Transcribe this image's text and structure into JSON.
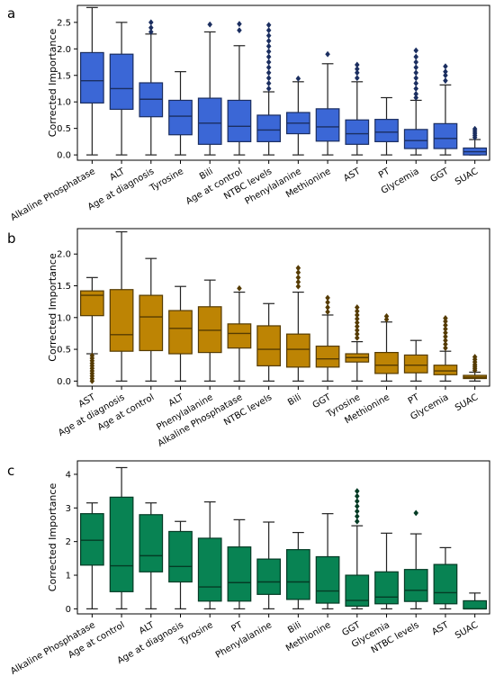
{
  "figure": {
    "background": "#ffffff",
    "whisker_color": "#222222"
  },
  "chart_data": [
    {
      "type": "box",
      "panel_label": "a",
      "title": "",
      "xlabel": "",
      "ylabel": "Corrected Importance",
      "ylim": [
        -0.1,
        2.82
      ],
      "yticks": [
        0.0,
        0.5,
        1.0,
        1.5,
        2.0,
        2.5
      ],
      "ytick_labels": [
        "0.0",
        "0.5",
        "1.0",
        "1.5",
        "2.0",
        "2.5"
      ],
      "grid": false,
      "color": "#3b67d6",
      "categories": [
        "Alkaline Phosphatase",
        "ALT",
        "Age at diagnosis",
        "Tyrosine",
        "Bili",
        "Age at control",
        "NTBC levels",
        "Phenylalanine",
        "Methionine",
        "AST",
        "PT",
        "Glycemia",
        "GGT",
        "SUAC"
      ],
      "boxes": [
        {
          "whislo": 0.0,
          "q1": 0.98,
          "med": 1.4,
          "q3": 1.93,
          "whishi": 2.78,
          "fliers": []
        },
        {
          "whislo": 0.0,
          "q1": 0.86,
          "med": 1.25,
          "q3": 1.9,
          "whishi": 2.5,
          "fliers": []
        },
        {
          "whislo": 0.0,
          "q1": 0.72,
          "med": 1.05,
          "q3": 1.36,
          "whishi": 2.28,
          "fliers": [
            2.32,
            2.4,
            2.5
          ]
        },
        {
          "whislo": 0.0,
          "q1": 0.38,
          "med": 0.73,
          "q3": 1.03,
          "whishi": 1.57,
          "fliers": []
        },
        {
          "whislo": 0.0,
          "q1": 0.2,
          "med": 0.6,
          "q3": 1.07,
          "whishi": 2.32,
          "fliers": [
            2.46
          ]
        },
        {
          "whislo": 0.0,
          "q1": 0.25,
          "med": 0.54,
          "q3": 1.03,
          "whishi": 2.06,
          "fliers": [
            2.35,
            2.47
          ]
        },
        {
          "whislo": 0.0,
          "q1": 0.25,
          "med": 0.47,
          "q3": 0.75,
          "whishi": 1.19,
          "fliers": [
            1.25,
            1.35,
            1.45,
            1.55,
            1.65,
            1.75,
            1.85,
            1.95,
            2.05,
            2.15,
            2.25,
            2.35,
            2.45
          ]
        },
        {
          "whislo": 0.0,
          "q1": 0.4,
          "med": 0.6,
          "q3": 0.8,
          "whishi": 1.38,
          "fliers": [
            1.44
          ]
        },
        {
          "whislo": 0.0,
          "q1": 0.26,
          "med": 0.53,
          "q3": 0.87,
          "whishi": 1.72,
          "fliers": [
            1.9
          ]
        },
        {
          "whislo": 0.0,
          "q1": 0.2,
          "med": 0.4,
          "q3": 0.66,
          "whishi": 1.38,
          "fliers": [
            1.45,
            1.55,
            1.62,
            1.7
          ]
        },
        {
          "whislo": 0.0,
          "q1": 0.25,
          "med": 0.43,
          "q3": 0.67,
          "whishi": 1.08,
          "fliers": []
        },
        {
          "whislo": 0.0,
          "q1": 0.12,
          "med": 0.27,
          "q3": 0.48,
          "whishi": 1.03,
          "fliers": [
            1.08,
            1.15,
            1.25,
            1.35,
            1.45,
            1.55,
            1.65,
            1.75,
            1.85,
            1.97
          ]
        },
        {
          "whislo": 0.0,
          "q1": 0.12,
          "med": 0.31,
          "q3": 0.59,
          "whishi": 1.32,
          "fliers": [
            1.4,
            1.5,
            1.57,
            1.67
          ]
        },
        {
          "whislo": 0.0,
          "q1": 0.0,
          "med": 0.06,
          "q3": 0.13,
          "whishi": 0.29,
          "fliers": [
            0.33,
            0.37,
            0.41,
            0.45,
            0.49
          ]
        }
      ]
    },
    {
      "type": "box",
      "panel_label": "b",
      "title": "",
      "xlabel": "",
      "ylabel": "Corrected Importance",
      "ylim": [
        -0.08,
        2.4
      ],
      "yticks": [
        0.0,
        0.5,
        1.0,
        1.5,
        2.0
      ],
      "ytick_labels": [
        "0.0",
        "0.5",
        "1.0",
        "1.5",
        "2.0"
      ],
      "grid": false,
      "color": "#bd8404",
      "categories": [
        "AST",
        "Age at diagnosis",
        "Age at control",
        "ALT",
        "Phenylalanine",
        "Alkaline Phosphatase",
        "NTBC levels",
        "Bili",
        "GGT",
        "Tyrosine",
        "Methionine",
        "PT",
        "Glycemia",
        "SUAC"
      ],
      "boxes": [
        {
          "whislo": 0.43,
          "q1": 1.03,
          "med": 1.35,
          "q3": 1.42,
          "whishi": 1.63,
          "fliers": [
            0.0,
            0.04,
            0.08,
            0.12,
            0.16,
            0.2,
            0.24,
            0.28,
            0.32,
            0.36,
            0.4
          ]
        },
        {
          "whislo": 0.0,
          "q1": 0.47,
          "med": 0.73,
          "q3": 1.44,
          "whishi": 2.35,
          "fliers": []
        },
        {
          "whislo": 0.0,
          "q1": 0.48,
          "med": 1.01,
          "q3": 1.35,
          "whishi": 1.93,
          "fliers": []
        },
        {
          "whislo": 0.0,
          "q1": 0.43,
          "med": 0.83,
          "q3": 1.11,
          "whishi": 1.49,
          "fliers": []
        },
        {
          "whislo": 0.0,
          "q1": 0.45,
          "med": 0.8,
          "q3": 1.17,
          "whishi": 1.59,
          "fliers": []
        },
        {
          "whislo": 0.0,
          "q1": 0.52,
          "med": 0.75,
          "q3": 0.9,
          "whishi": 1.4,
          "fliers": [
            1.46
          ]
        },
        {
          "whislo": 0.0,
          "q1": 0.24,
          "med": 0.5,
          "q3": 0.87,
          "whishi": 1.22,
          "fliers": []
        },
        {
          "whislo": 0.0,
          "q1": 0.22,
          "med": 0.5,
          "q3": 0.74,
          "whishi": 1.4,
          "fliers": [
            1.49,
            1.56,
            1.63,
            1.71,
            1.78
          ]
        },
        {
          "whislo": 0.0,
          "q1": 0.22,
          "med": 0.35,
          "q3": 0.55,
          "whishi": 1.04,
          "fliers": [
            1.09,
            1.16,
            1.24,
            1.31
          ]
        },
        {
          "whislo": 0.0,
          "q1": 0.3,
          "med": 0.37,
          "q3": 0.43,
          "whishi": 0.62,
          "fliers": [
            0.68,
            0.74,
            0.8,
            0.86,
            0.92,
            0.98,
            1.04,
            1.1,
            1.16
          ]
        },
        {
          "whislo": 0.0,
          "q1": 0.12,
          "med": 0.25,
          "q3": 0.45,
          "whishi": 0.93,
          "fliers": [
            0.97,
            1.02
          ]
        },
        {
          "whislo": 0.0,
          "q1": 0.13,
          "med": 0.25,
          "q3": 0.41,
          "whishi": 0.64,
          "fliers": []
        },
        {
          "whislo": 0.0,
          "q1": 0.1,
          "med": 0.16,
          "q3": 0.25,
          "whishi": 0.47,
          "fliers": [
            0.52,
            0.58,
            0.64,
            0.7,
            0.76,
            0.82,
            0.88,
            0.94,
            0.99
          ]
        },
        {
          "whislo": 0.0,
          "q1": 0.04,
          "med": 0.06,
          "q3": 0.09,
          "whishi": 0.14,
          "fliers": [
            0.17,
            0.2,
            0.23,
            0.26,
            0.3,
            0.34,
            0.38
          ]
        }
      ]
    },
    {
      "type": "box",
      "panel_label": "c",
      "title": "",
      "xlabel": "",
      "ylabel": "Corrected Importance",
      "ylim": [
        -0.15,
        4.4
      ],
      "yticks": [
        0,
        1,
        2,
        3,
        4
      ],
      "ytick_labels": [
        "0",
        "1",
        "2",
        "3",
        "4"
      ],
      "grid": false,
      "color": "#088353",
      "categories": [
        "Alkaline Phosphatase",
        "Age at control",
        "ALT",
        "Age at diagnosis",
        "Tyrosine",
        "PT",
        "Phenylalanine",
        "Bili",
        "Methionine",
        "GGT",
        "Glycemia",
        "NTBC levels",
        "AST",
        "SUAC"
      ],
      "boxes": [
        {
          "whislo": 0.0,
          "q1": 1.3,
          "med": 2.04,
          "q3": 2.83,
          "whishi": 3.15,
          "fliers": []
        },
        {
          "whislo": 0.0,
          "q1": 0.51,
          "med": 1.28,
          "q3": 3.32,
          "whishi": 4.2,
          "fliers": []
        },
        {
          "whislo": 0.0,
          "q1": 1.1,
          "med": 1.58,
          "q3": 2.8,
          "whishi": 3.15,
          "fliers": []
        },
        {
          "whislo": 0.0,
          "q1": 0.8,
          "med": 1.26,
          "q3": 2.3,
          "whishi": 2.6,
          "fliers": []
        },
        {
          "whislo": 0.0,
          "q1": 0.23,
          "med": 0.65,
          "q3": 2.1,
          "whishi": 3.18,
          "fliers": []
        },
        {
          "whislo": 0.0,
          "q1": 0.23,
          "med": 0.78,
          "q3": 1.84,
          "whishi": 2.65,
          "fliers": []
        },
        {
          "whislo": 0.0,
          "q1": 0.43,
          "med": 0.8,
          "q3": 1.48,
          "whishi": 2.58,
          "fliers": []
        },
        {
          "whislo": 0.0,
          "q1": 0.28,
          "med": 0.8,
          "q3": 1.76,
          "whishi": 2.27,
          "fliers": []
        },
        {
          "whislo": 0.0,
          "q1": 0.17,
          "med": 0.53,
          "q3": 1.55,
          "whishi": 2.83,
          "fliers": []
        },
        {
          "whislo": 0.0,
          "q1": 0.08,
          "med": 0.25,
          "q3": 1.0,
          "whishi": 2.47,
          "fliers": [
            2.6,
            2.75,
            2.9,
            3.05,
            3.2,
            3.35,
            3.5
          ]
        },
        {
          "whislo": 0.0,
          "q1": 0.15,
          "med": 0.35,
          "q3": 1.1,
          "whishi": 2.25,
          "fliers": []
        },
        {
          "whislo": 0.0,
          "q1": 0.22,
          "med": 0.55,
          "q3": 1.17,
          "whishi": 2.23,
          "fliers": [
            2.85
          ]
        },
        {
          "whislo": 0.0,
          "q1": 0.15,
          "med": 0.48,
          "q3": 1.32,
          "whishi": 1.82,
          "fliers": []
        },
        {
          "whislo": 0.0,
          "q1": 0.0,
          "med": 0.0,
          "q3": 0.24,
          "whishi": 0.47,
          "fliers": []
        }
      ]
    }
  ]
}
